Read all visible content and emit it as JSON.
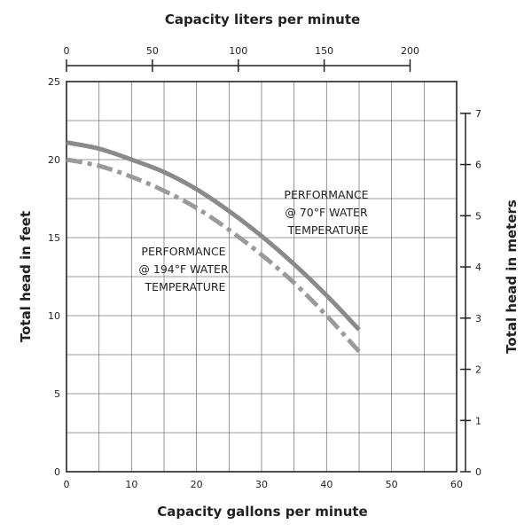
{
  "chart_data": {
    "type": "line",
    "xlabel": "Capacity gallons per minute",
    "ylabel": "Total head in feet",
    "x2label": "Capacity liters per minute",
    "y2label": "Total head in meters",
    "xlim": [
      0,
      60
    ],
    "ylim": [
      0,
      25
    ],
    "x2lim": [
      0,
      227.1
    ],
    "y2lim": [
      0,
      7.62
    ],
    "x_ticks": [
      0,
      10,
      20,
      30,
      40,
      50,
      60
    ],
    "y_ticks": [
      0,
      5,
      10,
      15,
      20,
      25
    ],
    "x2_ticks": [
      0,
      50,
      100,
      150,
      200
    ],
    "y2_ticks": [
      0,
      1,
      2,
      3,
      4,
      5,
      6,
      7
    ],
    "grid": true,
    "series": [
      {
        "name": "70F",
        "color": "#8a8a8a",
        "style": "solid",
        "x": [
          0,
          5,
          10,
          15,
          20,
          25,
          30,
          35,
          40,
          45
        ],
        "y": [
          21.1,
          20.7,
          20.0,
          19.2,
          18.1,
          16.7,
          15.1,
          13.3,
          11.3,
          9.1
        ]
      },
      {
        "name": "194F",
        "color": "#9a9a9a",
        "style": "dashdot",
        "x": [
          0,
          5,
          10,
          15,
          20,
          25,
          30,
          35,
          40,
          45
        ],
        "y": [
          20.0,
          19.6,
          18.9,
          18.0,
          16.9,
          15.5,
          13.9,
          12.1,
          10.0,
          7.7
        ]
      }
    ],
    "annotations": [
      {
        "lines": [
          "PERFORMANCE",
          "@ 70°F WATER",
          "TEMPERATURE"
        ]
      },
      {
        "lines": [
          "PERFORMANCE",
          "@ 194°F WATER",
          "TEMPERATURE"
        ]
      }
    ]
  }
}
